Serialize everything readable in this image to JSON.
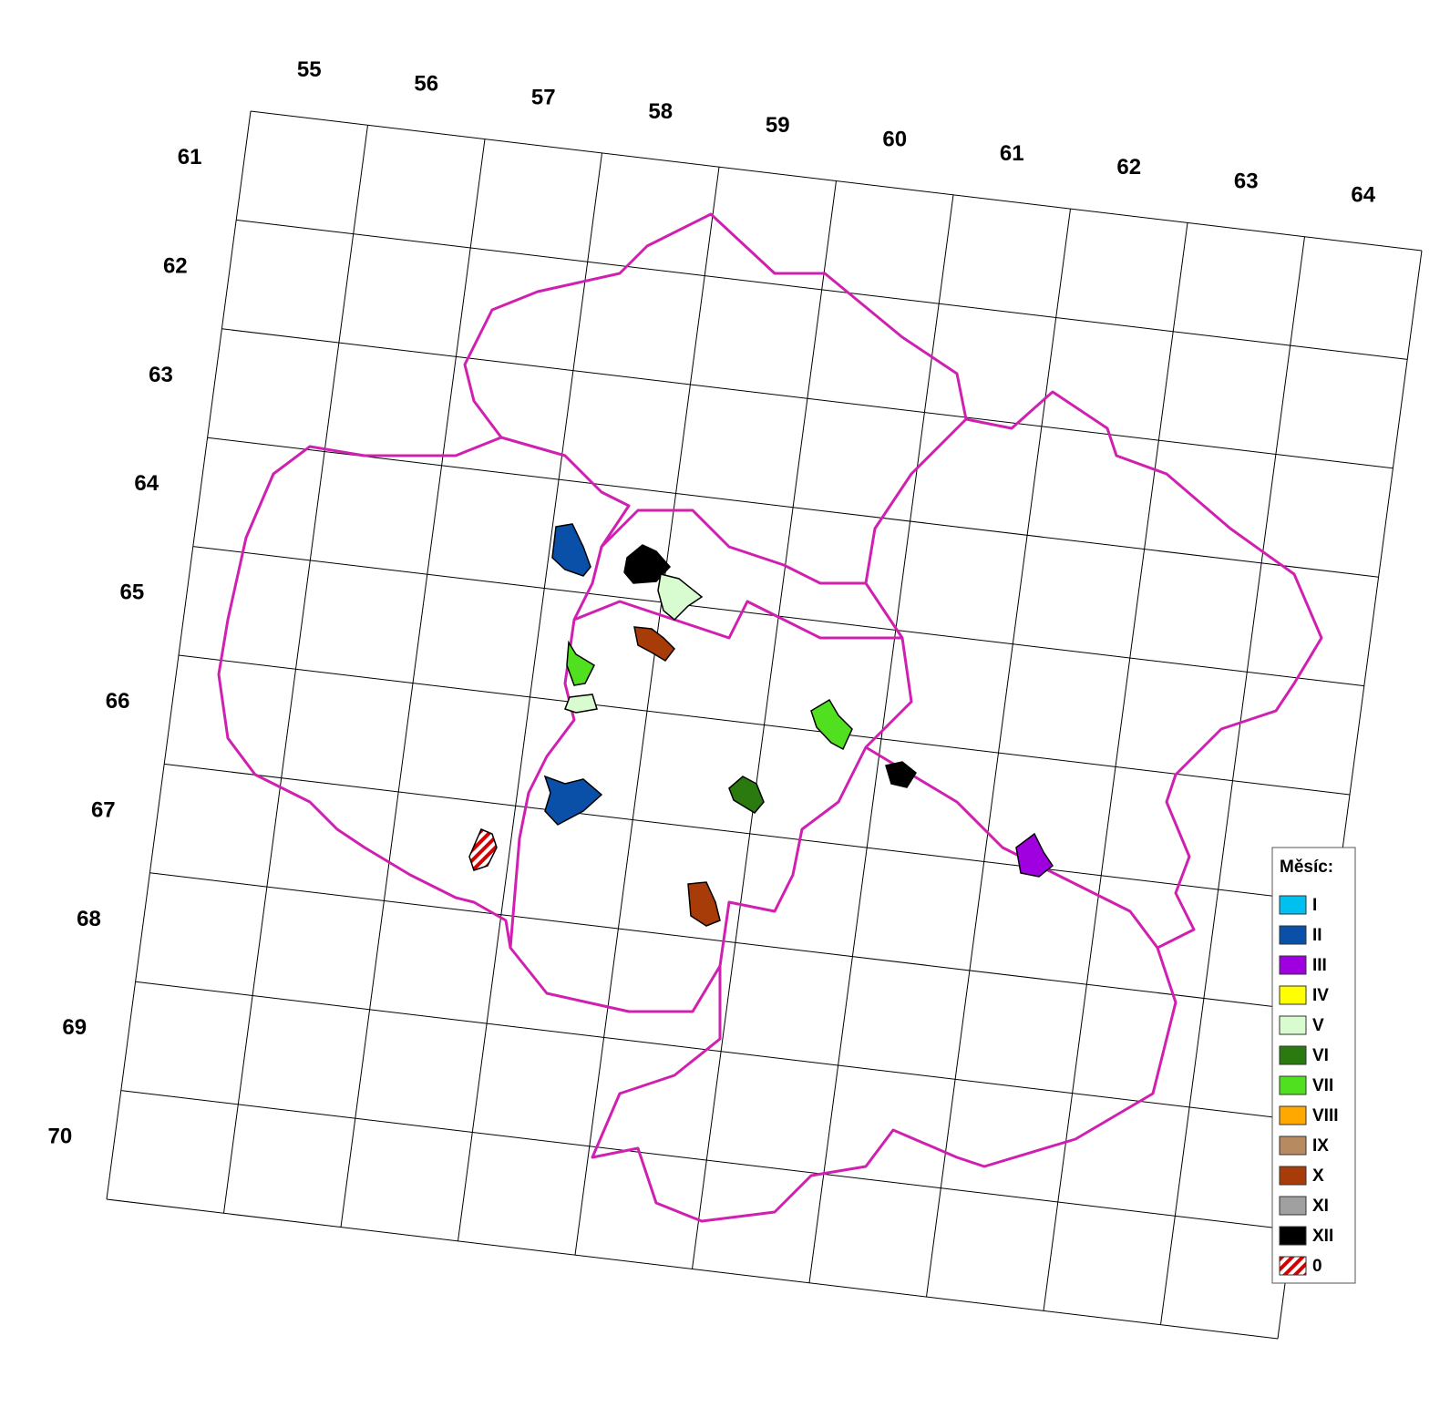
{
  "map": {
    "column_labels": [
      55,
      56,
      57,
      58,
      59,
      60,
      61,
      62,
      63,
      64
    ],
    "row_labels": [
      61,
      62,
      63,
      64,
      65,
      66,
      67,
      68,
      69,
      70
    ],
    "legend": {
      "title": "Měsíc:",
      "items": [
        {
          "name": "I",
          "color": "#00c0f0"
        },
        {
          "name": "II",
          "color": "#0a50a8"
        },
        {
          "name": "III",
          "color": "#a000e0"
        },
        {
          "name": "IV",
          "color": "#ffff00"
        },
        {
          "name": "V",
          "color": "#d8fcd0"
        },
        {
          "name": "VI",
          "color": "#2a7a10"
        },
        {
          "name": "VII",
          "color": "#50e020"
        },
        {
          "name": "VIII",
          "color": "#ffa800"
        },
        {
          "name": "IX",
          "color": "#b88a60"
        },
        {
          "name": "X",
          "color": "#a83c08"
        },
        {
          "name": "XI",
          "color": "#a0a0a0"
        },
        {
          "name": "XII",
          "color": "#000000"
        },
        {
          "name": "0",
          "color": "#d40000",
          "pattern": "hatch"
        }
      ]
    }
  }
}
